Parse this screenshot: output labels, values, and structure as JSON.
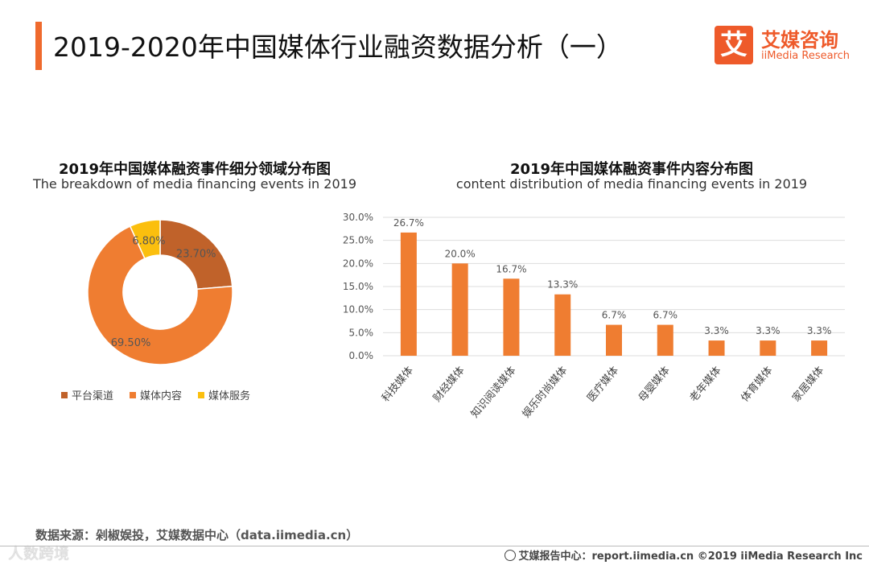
{
  "header": {
    "title": "2019-2020年中国媒体行业融资数据分析（一）",
    "logo_mark": "艾",
    "logo_cn": "艾媒咨询",
    "logo_en": "iiMedia Research"
  },
  "colors": {
    "accent": "#ef6a2d",
    "dark_orange": "#c0622a",
    "orange": "#ef7d31",
    "yellow": "#fbbf0e",
    "grid": "#dddddd"
  },
  "chart_data": [
    {
      "type": "pie",
      "title": "2019年中国媒体融资事件细分领域分布图",
      "subtitle": "The breakdown of media financing events in 2019",
      "categories": [
        "平台渠道",
        "媒体内容",
        "媒体服务"
      ],
      "values": [
        23.7,
        69.5,
        6.8
      ],
      "labels": [
        "23.70%",
        "69.50%",
        "6.80%"
      ],
      "colors": [
        "#c0622a",
        "#ef7d31",
        "#fbbf0e"
      ],
      "legend": "bottom"
    },
    {
      "type": "bar",
      "title": "2019年中国媒体融资事件内容分布图",
      "subtitle": "content distribution of media financing events in 2019",
      "categories": [
        "科技媒体",
        "财经媒体",
        "知识阅读媒体",
        "娱乐时尚媒体",
        "医疗媒体",
        "母婴媒体",
        "老年媒体",
        "体育媒体",
        "家居媒体"
      ],
      "values": [
        26.7,
        20.0,
        16.7,
        13.3,
        6.7,
        6.7,
        3.3,
        3.3,
        3.3
      ],
      "labels": [
        "26.7%",
        "20.0%",
        "16.7%",
        "13.3%",
        "6.7%",
        "6.7%",
        "3.3%",
        "3.3%",
        "3.3%"
      ],
      "yticks": [
        "0.0%",
        "5.0%",
        "10.0%",
        "15.0%",
        "20.0%",
        "25.0%",
        "30.0%"
      ],
      "ylim": [
        0,
        30
      ],
      "grid": true
    }
  ],
  "footer": {
    "source": "数据来源：剁椒娱投，艾媒数据中心（data.iimedia.cn）",
    "watermark": "人数跨境",
    "credit": "艾媒报告中心：report.iimedia.cn  ©2019  iiMedia Research  Inc"
  }
}
